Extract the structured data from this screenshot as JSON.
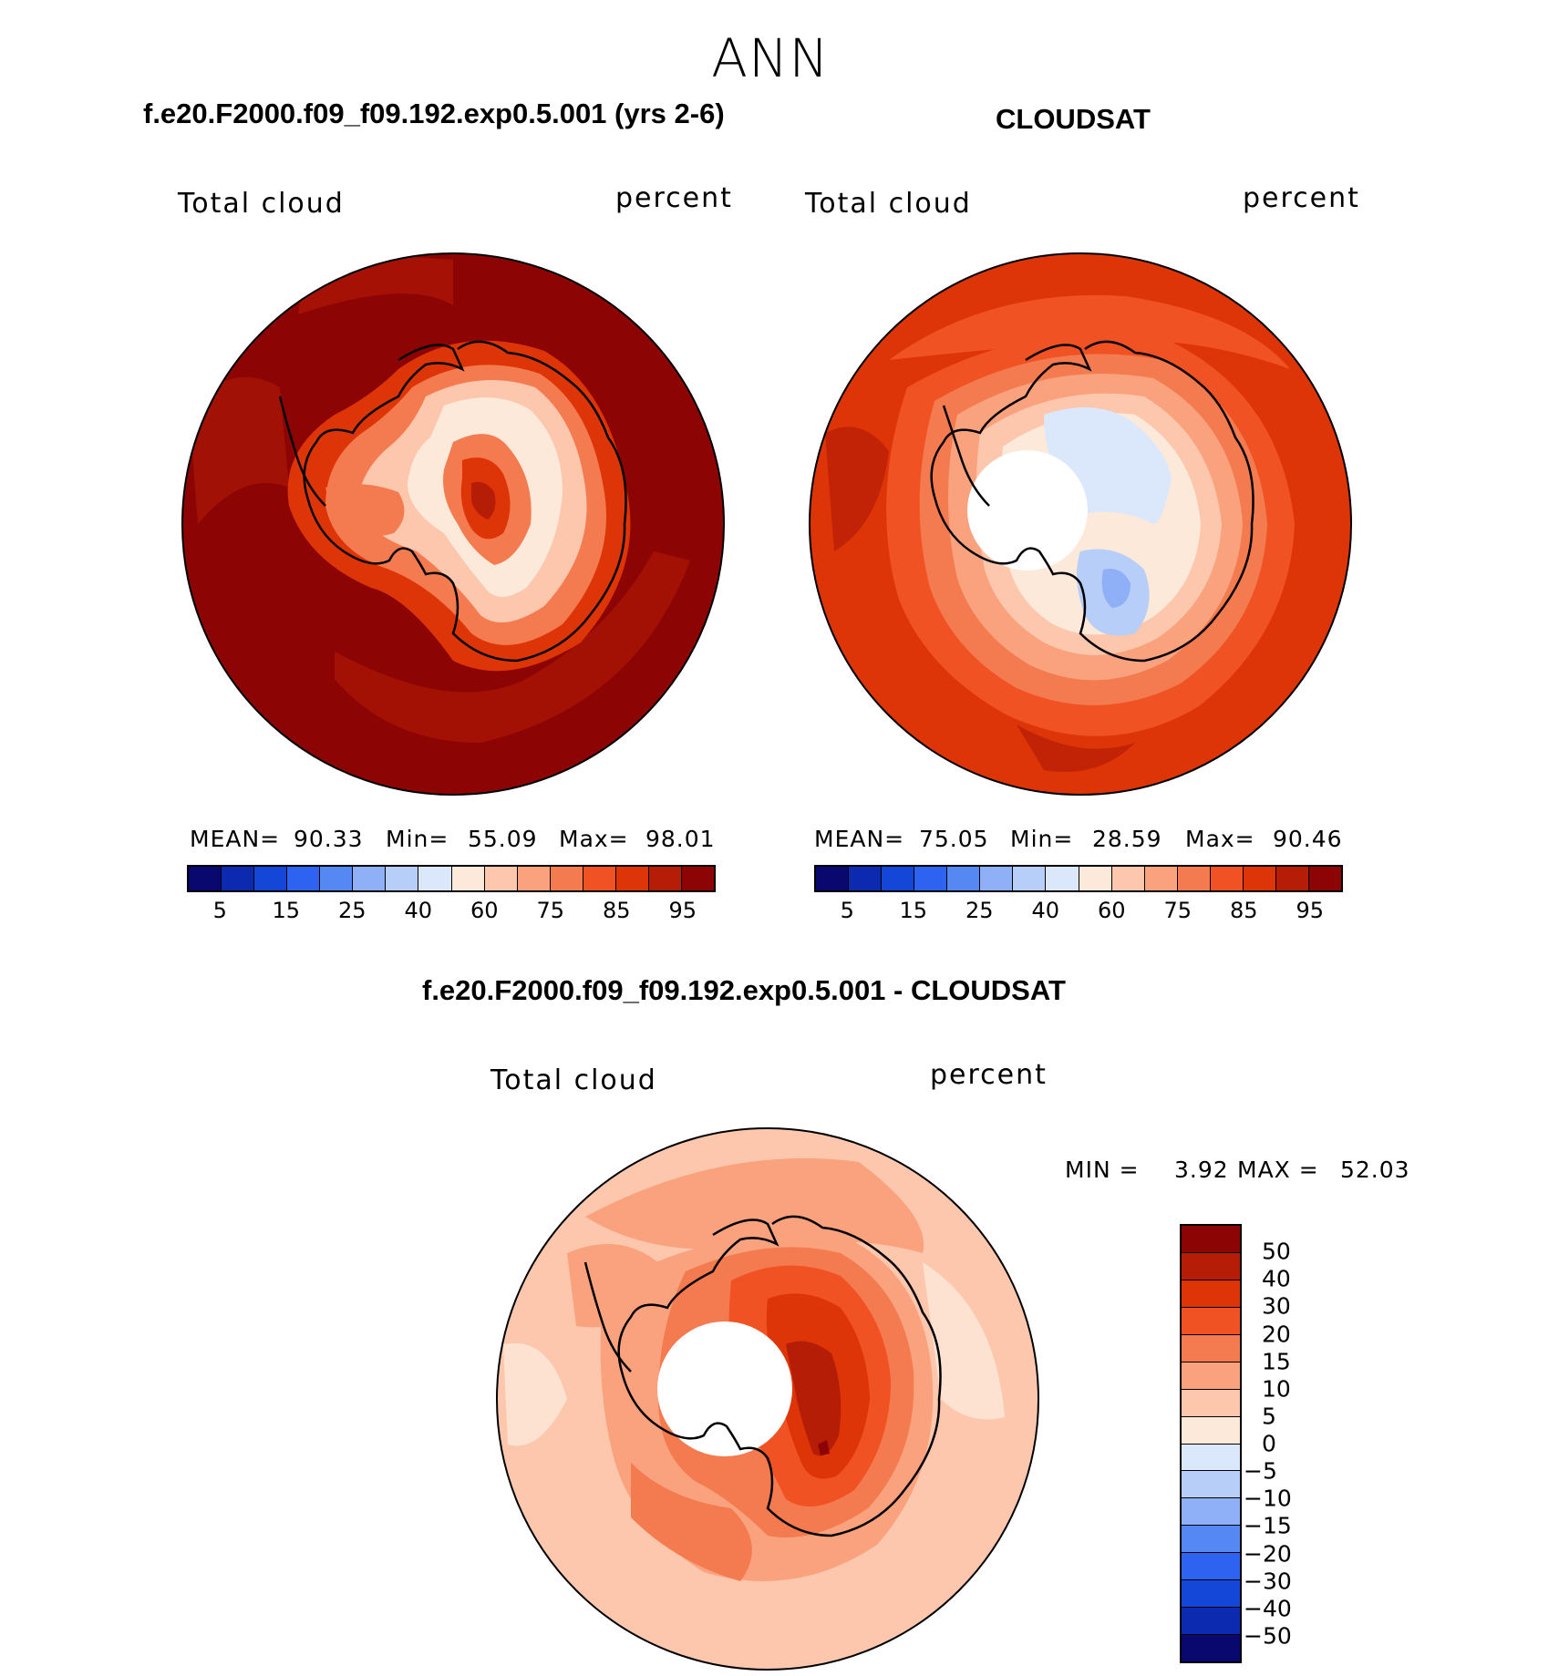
{
  "title": "ANN",
  "panels": [
    {
      "title": "f.e20.F2000.f09_f09.192.exp0.5.001 (yrs 2-6)",
      "label_left": "Total cloud",
      "label_right": "percent",
      "mean_label": "MEAN=",
      "mean": "90.33",
      "min_label": "Min=",
      "min": "55.09",
      "max_label": "Max=",
      "max": "98.01"
    },
    {
      "title": "CLOUDSAT",
      "label_left": "Total cloud",
      "label_right": "percent",
      "mean_label": "MEAN=",
      "mean": "75.05",
      "min_label": "Min=",
      "min": "28.59",
      "max_label": "Max=",
      "max": "90.46"
    }
  ],
  "diff": {
    "title": "f.e20.F2000.f09_f09.192.exp0.5.001 - CLOUDSAT",
    "label_left": "Total cloud",
    "label_right": "percent",
    "min_label": "MIN =",
    "min": "3.92",
    "max_label": "MAX =",
    "max": "52.03"
  },
  "colorbar_abs": {
    "ticks": [
      "5",
      "15",
      "25",
      "40",
      "60",
      "75",
      "85",
      "95"
    ],
    "colors": [
      "#08086e",
      "#0b2ab0",
      "#1446d8",
      "#2d63f0",
      "#5588f2",
      "#8fb0f6",
      "#b6cef8",
      "#dbe8fc",
      "#fde9da",
      "#fcc7ad",
      "#f9a27d",
      "#f47a4f",
      "#f05224",
      "#dd3408",
      "#b61d07",
      "#8c0404"
    ]
  },
  "colorbar_diff": {
    "ticks": [
      "50",
      "40",
      "30",
      "20",
      "15",
      "10",
      "5",
      "0",
      "−5",
      "−10",
      "−15",
      "−20",
      "−30",
      "−40",
      "−50"
    ],
    "colors": [
      "#8c0404",
      "#b61d07",
      "#dd3408",
      "#f05224",
      "#f47a4f",
      "#f9a27d",
      "#fcc7ad",
      "#fde9da",
      "#dbe8fc",
      "#b6cef8",
      "#8fb0f6",
      "#5588f2",
      "#2d63f0",
      "#1446d8",
      "#0b2ab0",
      "#08086e"
    ]
  },
  "colors": {
    "darkred": "#8c0404",
    "red": "#dd3408",
    "orange": "#f05224",
    "salmon": "#f9a27d",
    "peach": "#fcc7ad",
    "cream": "#fde9da",
    "lightblue": "#dbe8fc",
    "blue": "#8fb0f6",
    "blue2": "#5588f2"
  }
}
